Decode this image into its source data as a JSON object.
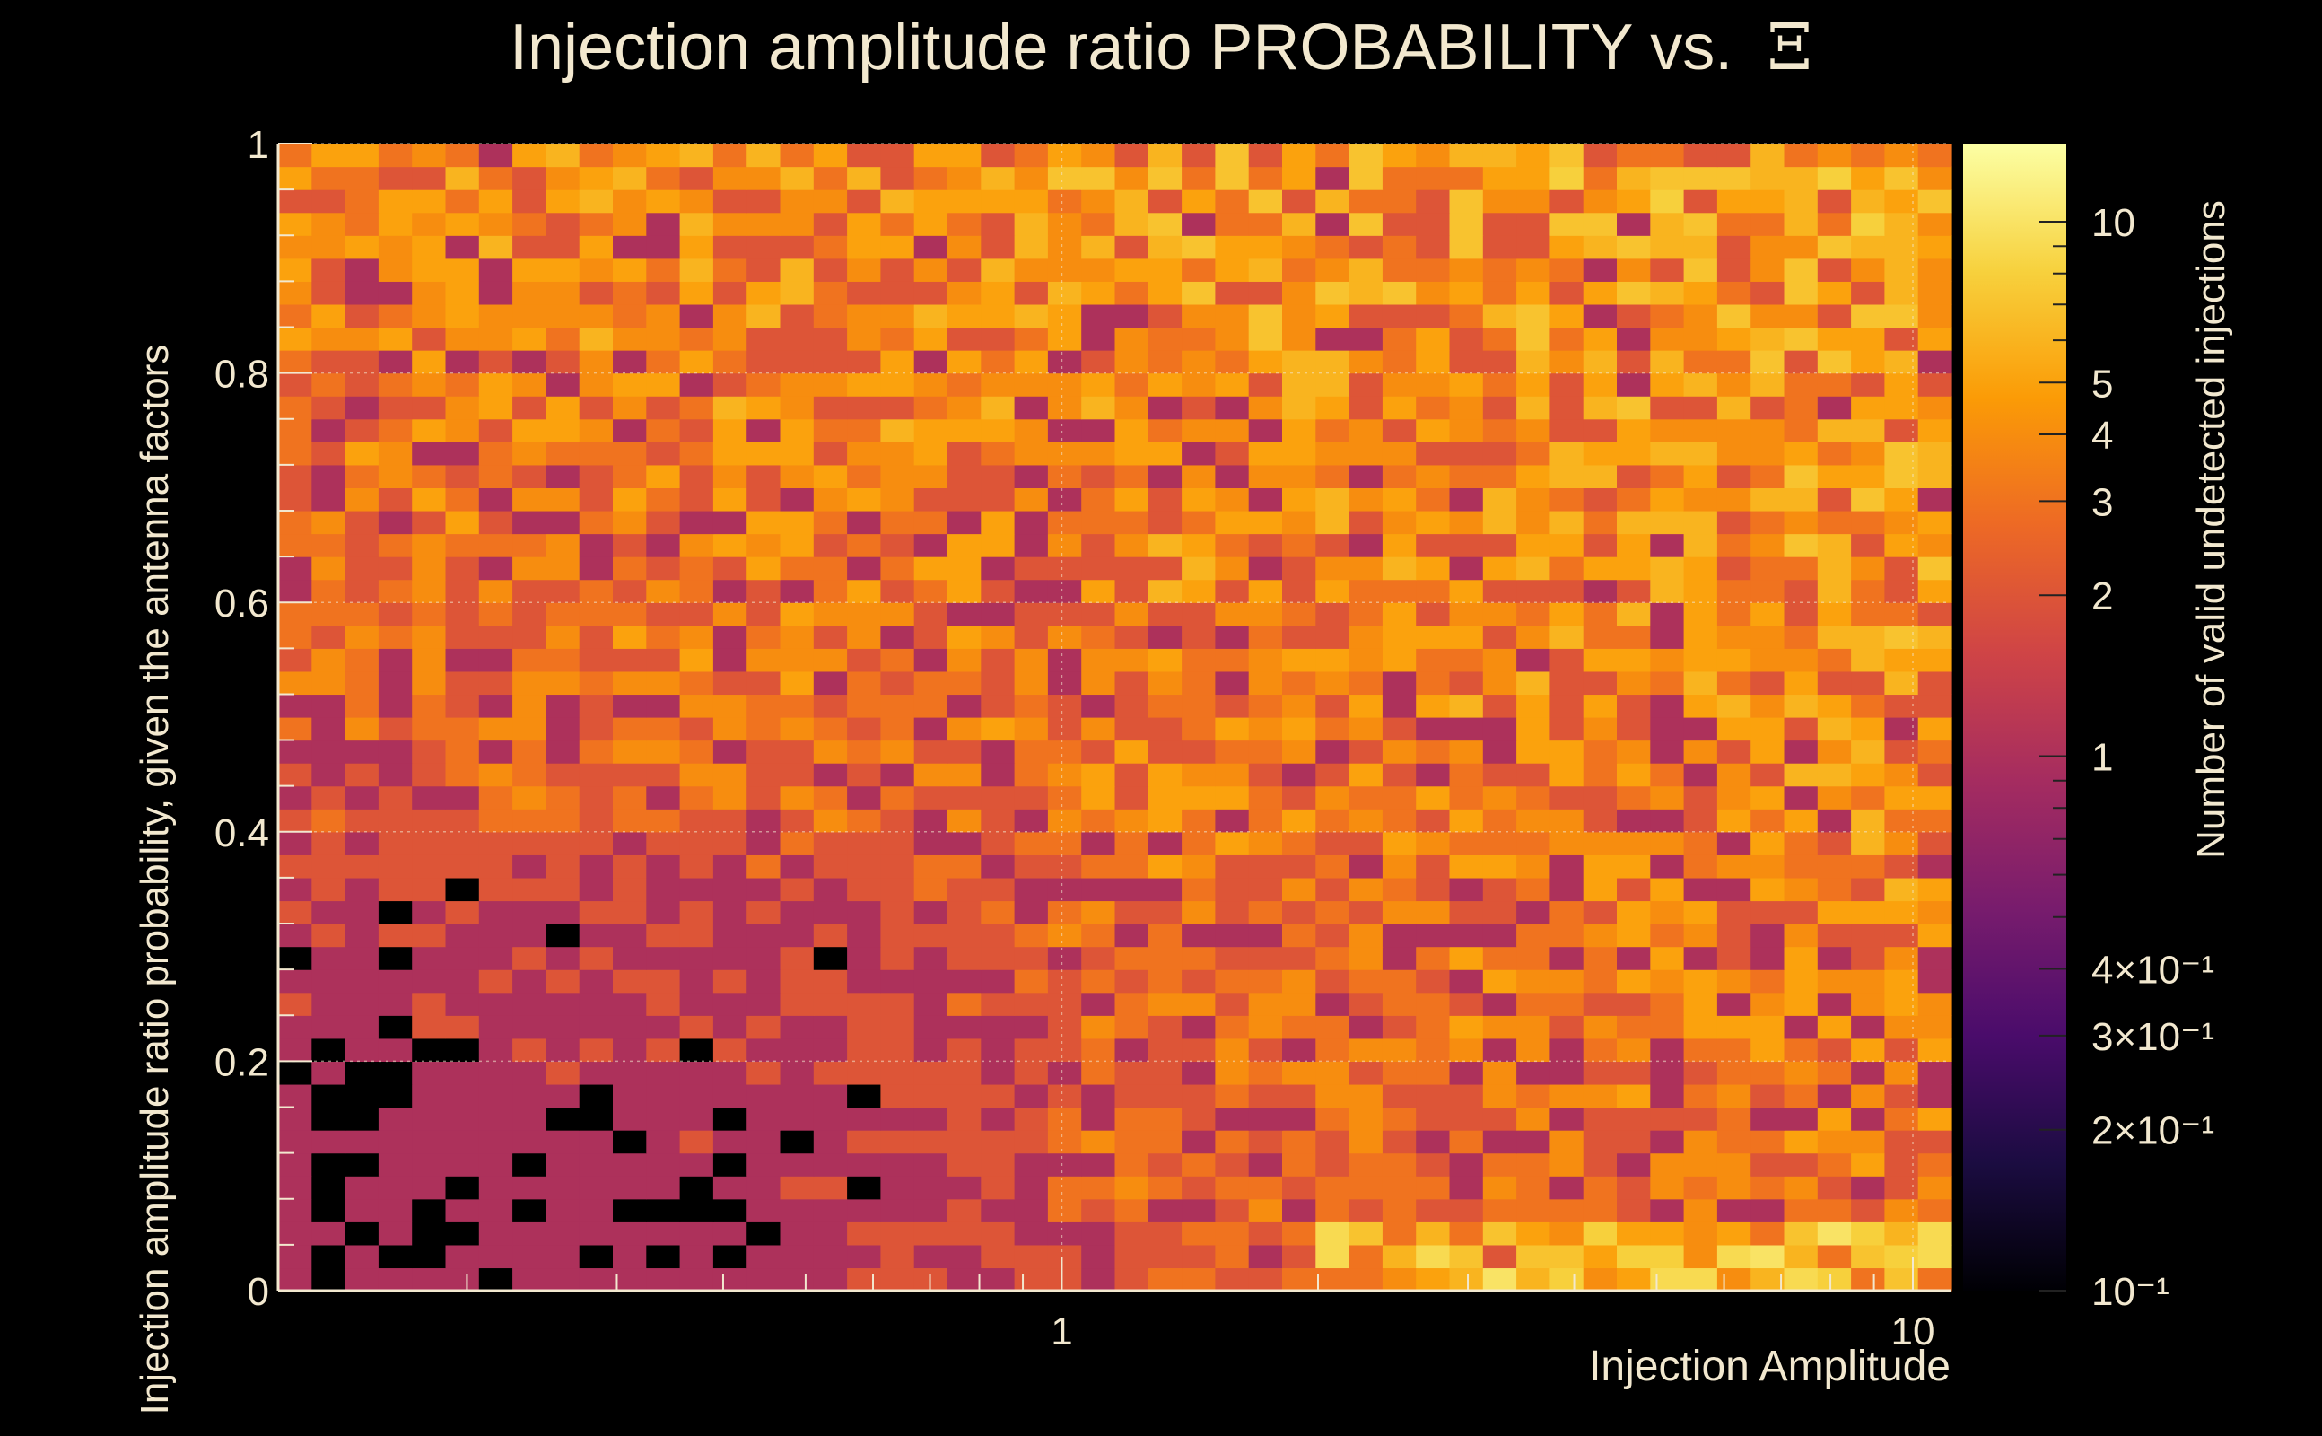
{
  "chart_data": {
    "type": "heatmap",
    "title": "Injection amplitude ratio PROBABILITY vs.",
    "title_symbol": "Ξ",
    "xlabel": "Injection Amplitude",
    "ylabel": "Injection amplitude ratio probability, given the antenna factors",
    "zlabel": "Number of valid undetected injections",
    "x_scale": "log",
    "x_range": [
      0.12,
      11.1
    ],
    "y_range": [
      0,
      1
    ],
    "z_scale": "log",
    "z_range": [
      0.1,
      14
    ],
    "x_ticks": [
      {
        "value": 1,
        "label": "1"
      },
      {
        "value": 10,
        "label": "10"
      }
    ],
    "y_ticks": [
      {
        "value": 0,
        "label": "0"
      },
      {
        "value": 0.2,
        "label": "0.2"
      },
      {
        "value": 0.4,
        "label": "0.4"
      },
      {
        "value": 0.6,
        "label": "0.6"
      },
      {
        "value": 0.8,
        "label": "0.8"
      },
      {
        "value": 1,
        "label": "1"
      }
    ],
    "z_ticks": [
      {
        "value": 10,
        "label": "10"
      },
      {
        "value": 5,
        "label": "5"
      },
      {
        "value": 4,
        "label": "4"
      },
      {
        "value": 3,
        "label": "3"
      },
      {
        "value": 2,
        "label": "2"
      },
      {
        "value": 1,
        "label": "1"
      },
      {
        "value": 0.4,
        "label": "4×10⁻¹"
      },
      {
        "value": 0.3,
        "label": "3×10⁻¹"
      },
      {
        "value": 0.2,
        "label": "2×10⁻¹"
      },
      {
        "value": 0.1,
        "label": "10⁻¹"
      }
    ],
    "grid": true,
    "bins": {
      "nx": 50,
      "ny": 50
    },
    "colormap": [
      "#000004",
      "#1b0c41",
      "#4a0c6b",
      "#781c6d",
      "#a52c60",
      "#cf4446",
      "#ed6925",
      "#fb9b06",
      "#f7d13d",
      "#fcffa4"
    ],
    "empty_color": "#000000",
    "axis_color": "#f2e8cf"
  }
}
